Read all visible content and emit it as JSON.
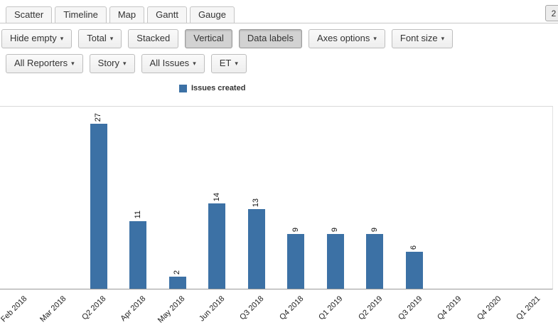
{
  "tabs": [
    {
      "label": "Scatter"
    },
    {
      "label": "Timeline"
    },
    {
      "label": "Map"
    },
    {
      "label": "Gantt"
    },
    {
      "label": "Gauge"
    }
  ],
  "corner_button": {
    "label": "2"
  },
  "toolbar": {
    "buttons": [
      {
        "label": "Hide empty",
        "dropdown": true,
        "active": false
      },
      {
        "label": "Total",
        "dropdown": true,
        "active": false
      },
      {
        "label": "Stacked",
        "dropdown": false,
        "active": false
      },
      {
        "label": "Vertical",
        "dropdown": false,
        "active": true
      },
      {
        "label": "Data labels",
        "dropdown": false,
        "active": true
      },
      {
        "label": "Axes options",
        "dropdown": true,
        "active": false
      },
      {
        "label": "Font size",
        "dropdown": true,
        "active": false
      }
    ]
  },
  "filters": [
    {
      "label": "All Reporters"
    },
    {
      "label": "Story"
    },
    {
      "label": "All Issues"
    },
    {
      "label": "ET"
    }
  ],
  "legend": {
    "label": "Issues created",
    "color": "#3c71a5"
  },
  "chart_data": {
    "type": "bar",
    "title": "",
    "series_name": "Issues created",
    "categories": [
      "Feb 2018",
      "Mar 2018",
      "Q2 2018",
      "Apr 2018",
      "May 2018",
      "Jun 2018",
      "Q3 2018",
      "Q4 2018",
      "Q1 2019",
      "Q2 2019",
      "Q3 2019",
      "Q4 2019",
      "Q4 2020",
      "Q1 2021"
    ],
    "values": [
      0,
      0,
      27,
      11,
      2,
      14,
      13,
      9,
      9,
      9,
      6,
      0,
      0,
      0
    ],
    "ylim": [
      0,
      30
    ],
    "bar_color": "#3c71a5",
    "grid": "single-top-line",
    "legend_position": "top",
    "data_labels": true
  }
}
